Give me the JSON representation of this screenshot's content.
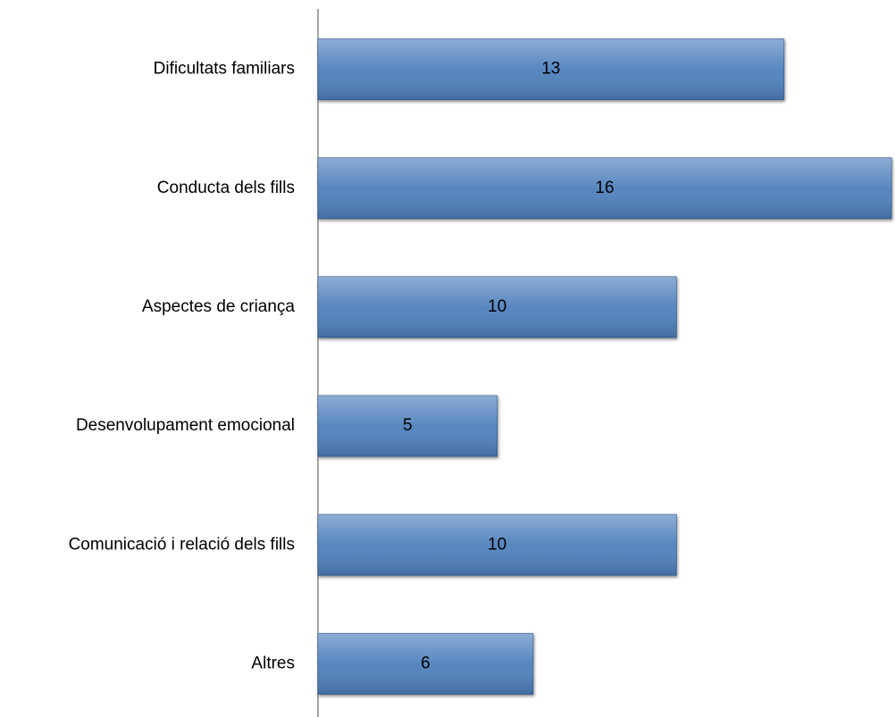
{
  "chart_data": {
    "type": "bar",
    "orientation": "horizontal",
    "categories": [
      "Dificultats familiars",
      "Conducta dels fills",
      "Aspectes de criança",
      "Desenvolupament emocional",
      "Comunicació i relació dels fills",
      "Altres"
    ],
    "values": [
      13,
      16,
      10,
      5,
      10,
      6
    ],
    "color": "#4f81bd",
    "xlim": [
      0,
      16
    ]
  }
}
